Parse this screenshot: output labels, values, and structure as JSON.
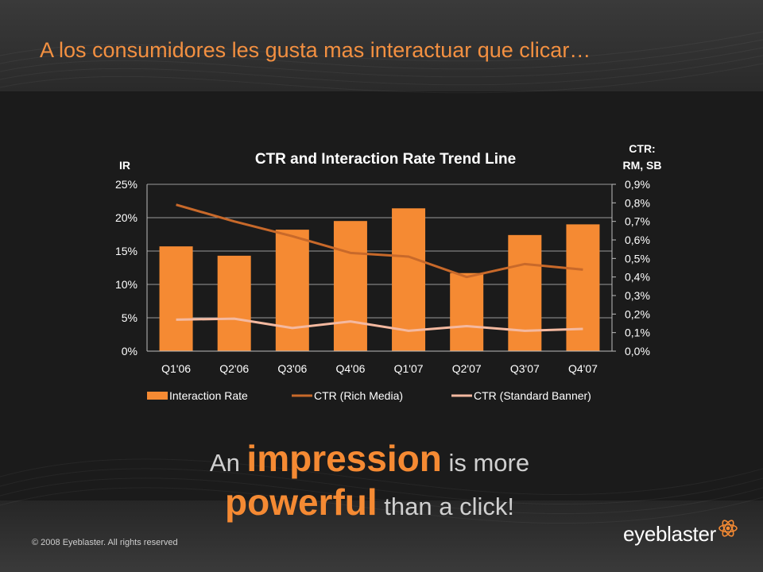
{
  "slide": {
    "title": "A los consumidores les gusta mas interactuar que clicar…",
    "tagline": {
      "line1": {
        "pre": "An ",
        "highlight": "impression",
        "post": " is more"
      },
      "line2": {
        "highlight": "powerful",
        "post": " than a click!"
      }
    },
    "copyright": "© 2008 Eyeblaster. All rights reserved",
    "logo": {
      "text": "eyeblaster",
      "icon": "atom-icon"
    },
    "colors": {
      "accent": "#f58a33",
      "background": "#1b1b1b"
    }
  },
  "chart_data": {
    "type": "bar",
    "title": "CTR and Interaction Rate Trend Line",
    "left_axis_label": "IR",
    "right_axis_label": [
      "CTR:",
      "RM, SB"
    ],
    "categories": [
      "Q1'06",
      "Q2'06",
      "Q3'06",
      "Q4'06",
      "Q1'07",
      "Q2'07",
      "Q3'07",
      "Q4'07"
    ],
    "left_axis": {
      "min": 0,
      "max": 25,
      "step": 5,
      "ticks": [
        "0%",
        "5%",
        "10%",
        "15%",
        "20%",
        "25%"
      ]
    },
    "right_axis": {
      "min": 0,
      "max": 0.9,
      "step": 0.1,
      "ticks": [
        "0,0%",
        "0,1%",
        "0,2%",
        "0,3%",
        "0,4%",
        "0,5%",
        "0,6%",
        "0,7%",
        "0,8%",
        "0,9%"
      ]
    },
    "series": [
      {
        "name": "Interaction Rate",
        "kind": "bar",
        "axis": "left",
        "color": "#f58a33",
        "values": [
          15.7,
          14.3,
          18.2,
          19.5,
          21.4,
          11.7,
          17.4,
          19.0
        ]
      },
      {
        "name": "CTR (Rich Media)",
        "kind": "line",
        "axis": "right",
        "color": "#c8692a",
        "values": [
          0.79,
          0.7,
          0.62,
          0.53,
          0.51,
          0.4,
          0.47,
          0.44
        ]
      },
      {
        "name": "CTR (Standard Banner)",
        "kind": "line",
        "axis": "right",
        "color": "#f4b9a0",
        "values": [
          0.17,
          0.175,
          0.125,
          0.16,
          0.11,
          0.135,
          0.11,
          0.12
        ]
      }
    ],
    "grid": true,
    "legend": "bottom"
  }
}
